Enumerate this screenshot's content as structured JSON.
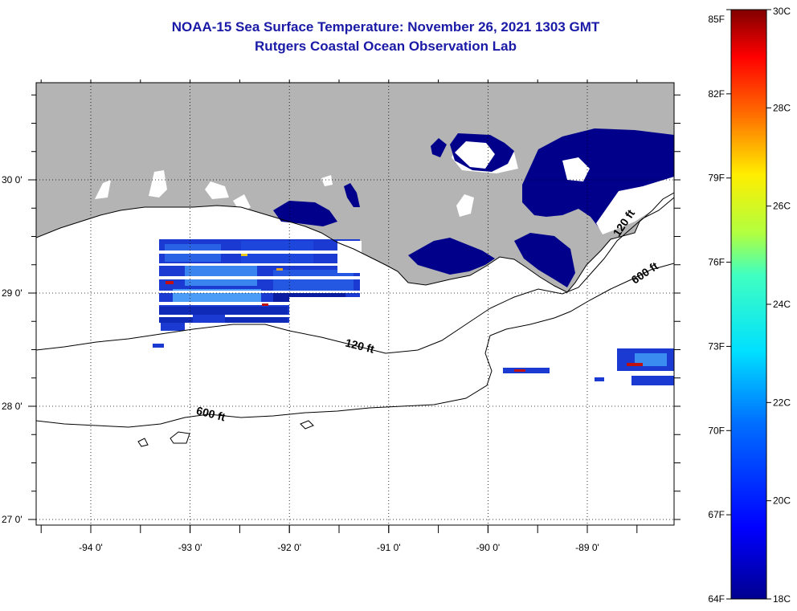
{
  "title": {
    "line1": "NOAA-15 Sea Surface Temperature:  November 26, 2021 1303 GMT",
    "line2": "Rutgers Coastal Ocean Observation Lab"
  },
  "map": {
    "lon_ticks": [
      {
        "value": -94,
        "label": "-94 0'"
      },
      {
        "value": -93,
        "label": "-93 0'"
      },
      {
        "value": -92,
        "label": "-92 0'"
      },
      {
        "value": -91,
        "label": "-91 0'"
      },
      {
        "value": -90,
        "label": "-90 0'"
      },
      {
        "value": -89,
        "label": "-89 0'"
      }
    ],
    "lat_ticks": [
      {
        "value": 30,
        "label": "30 0'"
      },
      {
        "value": 29,
        "label": "29 0'"
      },
      {
        "value": 28,
        "label": "28 0'"
      },
      {
        "value": 27,
        "label": "27 0'"
      }
    ],
    "contour_labels": [
      {
        "text": "120 ft",
        "lon": -91.3,
        "lat": 28.5,
        "angle": 14
      },
      {
        "text": "600 ft",
        "lon": -92.8,
        "lat": 27.9,
        "angle": 14
      },
      {
        "text": "120 ft",
        "lon": -88.6,
        "lat": 29.6,
        "angle": -56
      },
      {
        "text": "600 ft",
        "lon": -88.4,
        "lat": 29.15,
        "angle": -34
      }
    ],
    "colors": {
      "land": "#b4b4b4",
      "cold": "#00008b",
      "mid": "#1a4ad8",
      "warm": "#3a8cf0",
      "cloud": "#ffffff"
    }
  },
  "colorbar": {
    "fahrenheit_labels": [
      "85F",
      "82F",
      "79F",
      "76F",
      "73F",
      "70F",
      "67F",
      "64F"
    ],
    "celsius_labels": [
      "30C",
      "28C",
      "26C",
      "24C",
      "22C",
      "20C",
      "18C"
    ],
    "celsius_min": 18,
    "celsius_max": 30,
    "fahrenheit_min": 64,
    "fahrenheit_max": 85
  }
}
